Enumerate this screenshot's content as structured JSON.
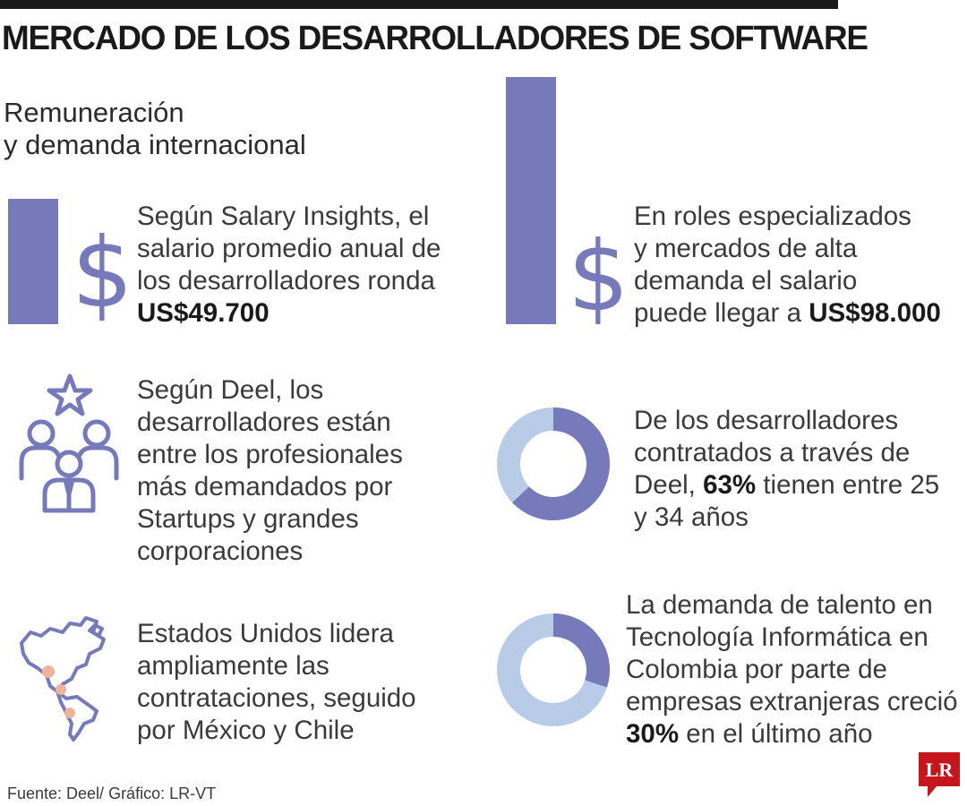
{
  "header": {
    "title": "MERCADO DE LOS DESARROLLADORES DE SOFTWARE",
    "subtitle_line1": "Remuneración",
    "subtitle_line2": "y demanda internacional"
  },
  "items": [
    {
      "lines": [
        "Según Salary Insights, el",
        "salario promedio anual de",
        "los desarrolladores ronda"
      ],
      "highlight": "US$49.700",
      "icon": "dollar-icon"
    },
    {
      "lines": [
        "En roles especializados",
        "y mercados de alta",
        "demanda el salario"
      ],
      "pre": "puede llegar a ",
      "highlight": "US$98.000",
      "icon": "dollar-icon"
    },
    {
      "lines": [
        "Según Deel, los",
        "desarrolladores están",
        "entre los profesionales",
        "más demandados por",
        "Startups y grandes",
        "corporaciones"
      ],
      "icon": "team-star-icon"
    },
    {
      "lines": [
        "De los desarrolladores",
        "contratados a través de"
      ],
      "pre": "Deel, ",
      "highlight": "63%",
      "post": " tienen entre 25",
      "last": "y 34 años",
      "icon": "donut-chart-icon"
    },
    {
      "lines": [
        "Estados Unidos lidera",
        "ampliamente las",
        "contrataciones, seguido",
        "por México y Chile"
      ],
      "icon": "americas-map-icon"
    },
    {
      "lines": [
        "La demanda de talento en",
        "Tecnología Informática en",
        "Colombia por parte de",
        "empresas extranjeras creció"
      ],
      "highlight": "30%",
      "post": " en el último año",
      "icon": "donut-chart-icon"
    }
  ],
  "footer": {
    "source": "Fuente: Deel/ Gráfico: LR-VT",
    "logo_text": "LR"
  },
  "colors": {
    "accent": "#7679ba",
    "accent_light": "#b8cbe7",
    "logo_red": "#c4161c"
  },
  "chart_data": [
    {
      "type": "bar",
      "categories": [
        "US$49.700",
        "US$98.000"
      ],
      "values": [
        49700,
        98000
      ],
      "title": "",
      "xlabel": "",
      "ylabel": ""
    },
    {
      "type": "pie",
      "labels": [
        "",
        ""
      ],
      "values": [
        63,
        37
      ],
      "title": ""
    },
    {
      "type": "pie",
      "labels": [
        "",
        ""
      ],
      "values": [
        30,
        70
      ],
      "title": ""
    }
  ]
}
